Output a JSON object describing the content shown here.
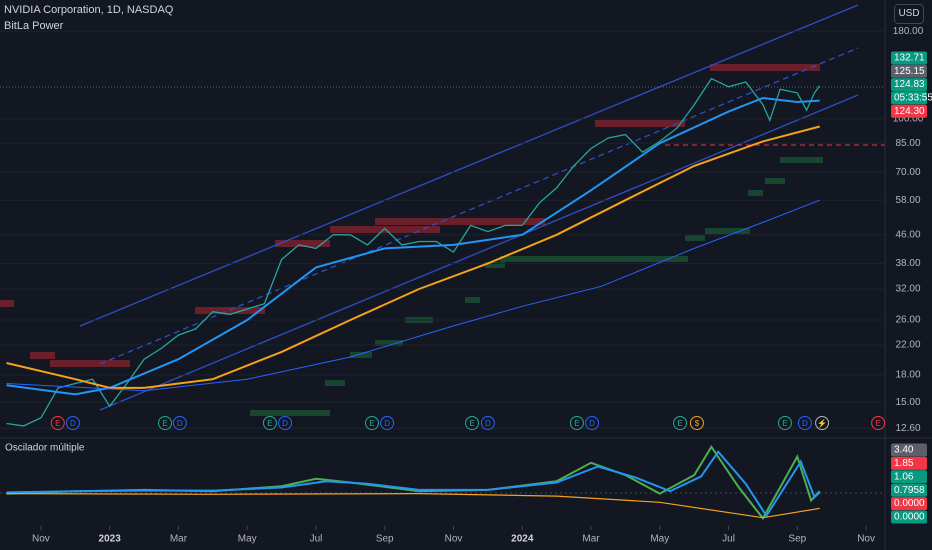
{
  "header": {
    "title": "NVIDIA Corporation, 1D, NASDAQ",
    "indicator": "BitLa Power",
    "currency": "USD"
  },
  "chart_data": {
    "type": "line",
    "xlim": [
      -0.19,
      25.55
    ],
    "xticks": [
      {
        "value": 1,
        "label": "Nov"
      },
      {
        "value": 3,
        "label": "2023"
      },
      {
        "value": 5,
        "label": "Mar"
      },
      {
        "value": 7,
        "label": "May"
      },
      {
        "value": 9,
        "label": "Jul"
      },
      {
        "value": 11,
        "label": "Sep"
      },
      {
        "value": 13,
        "label": "Nov"
      },
      {
        "value": 15,
        "label": "2024"
      },
      {
        "value": 17,
        "label": "Mar"
      },
      {
        "value": 19,
        "label": "May"
      },
      {
        "value": 21,
        "label": "Jul"
      },
      {
        "value": 23,
        "label": "Sep"
      },
      {
        "value": 25,
        "label": "Nov"
      }
    ],
    "ylim": [
      11.8,
      221.7
    ],
    "log_scale": true,
    "yticks": [
      {
        "value": 180,
        "label": "180.00"
      },
      {
        "value": 100,
        "label": "100.00"
      },
      {
        "value": 85,
        "label": "85.00"
      },
      {
        "value": 70,
        "label": "70.00"
      },
      {
        "value": 58,
        "label": "58.00"
      },
      {
        "value": 46,
        "label": "46.00"
      },
      {
        "value": 38,
        "label": "38.00"
      },
      {
        "value": 32,
        "label": "32.00"
      },
      {
        "value": 26,
        "label": "26.00"
      },
      {
        "value": 22,
        "label": "22.00"
      },
      {
        "value": 18,
        "label": "18.00"
      },
      {
        "value": 15,
        "label": "15.00"
      },
      {
        "value": 12.6,
        "label": "12.60"
      }
    ],
    "series": [
      {
        "color": "#26a69a",
        "x": [
          0,
          0.5,
          1,
          1.5,
          2,
          2.5,
          3,
          3.5,
          4,
          4.5,
          5,
          5.5,
          6,
          6.5,
          7,
          7.5,
          8,
          8.5,
          9,
          9.5,
          10,
          10.5,
          11,
          11.5,
          12,
          12.5,
          13,
          13.5,
          14,
          14.5,
          15,
          15.5,
          16,
          16.5,
          17,
          17.5,
          18,
          18.5,
          19,
          19.5,
          20,
          20.5,
          21,
          21.5,
          22,
          22.2,
          22.5,
          23,
          23.27,
          23.5,
          23.65
        ],
        "values": [
          13,
          12.8,
          13.5,
          16.5,
          17,
          17.5,
          14.6,
          17,
          20,
          21.5,
          23.5,
          24.5,
          27.5,
          27,
          28,
          29,
          39,
          43,
          42,
          46,
          46,
          43,
          48,
          43,
          44,
          44,
          41,
          49,
          47,
          49,
          49,
          57,
          63,
          73,
          82,
          88,
          90,
          80,
          86,
          94,
          110,
          131,
          124,
          128,
          110,
          99,
          122,
          119,
          106,
          119,
          124.83
        ]
      },
      {
        "color": "#2196f3",
        "x": [
          0,
          2,
          3,
          5,
          7,
          9,
          11,
          13,
          15,
          17,
          19,
          21,
          22,
          23,
          23.65
        ],
        "values": [
          16.8,
          15.8,
          16.5,
          20,
          26,
          37,
          42,
          43,
          46,
          62,
          85,
          105,
          115,
          112,
          113
        ]
      },
      {
        "color": "#f7a21b",
        "x": [
          0,
          2,
          3,
          4,
          6,
          8,
          10,
          12,
          14,
          16,
          18,
          20,
          22,
          23.65
        ],
        "values": [
          19.5,
          17.5,
          16.5,
          16.5,
          17.5,
          21,
          26,
          32,
          38,
          46,
          58,
          73,
          86,
          95
        ]
      },
      {
        "color": "#2962ff",
        "x": [
          0,
          4,
          7,
          10,
          13,
          15,
          17.3,
          20,
          22,
          23.65
        ],
        "values": [
          17,
          16.2,
          17.5,
          20.3,
          25,
          28.5,
          32.6,
          42,
          50,
          58
        ]
      }
    ],
    "price_tags": [
      {
        "value": 132.71,
        "color": "#089981"
      },
      {
        "value": 125.15,
        "color": "#5d606b"
      },
      {
        "value": 124.83,
        "color": "#089981"
      },
      {
        "value": "05:33:55",
        "color": "#089981"
      },
      {
        "value": 124.3,
        "label": "124.30",
        "color": "#f23645"
      }
    ],
    "events": [
      {
        "label": "E",
        "x": 1.49,
        "color": "#f23645"
      },
      {
        "label": "D",
        "x": 1.93,
        "color": "#2962ff"
      },
      {
        "label": "E",
        "x": 4.61,
        "color": "#22ab94"
      },
      {
        "label": "D",
        "x": 5.04,
        "color": "#2962ff"
      },
      {
        "label": "E",
        "x": 7.66,
        "color": "#22ab94"
      },
      {
        "label": "D",
        "x": 8.1,
        "color": "#2962ff"
      },
      {
        "label": "E",
        "x": 10.63,
        "color": "#22ab94"
      },
      {
        "label": "D",
        "x": 11.07,
        "color": "#2962ff"
      },
      {
        "label": "E",
        "x": 13.54,
        "color": "#22ab94"
      },
      {
        "label": "D",
        "x": 14.0,
        "color": "#2962ff"
      },
      {
        "label": "E",
        "x": 16.59,
        "color": "#22ab94"
      },
      {
        "label": "D",
        "x": 17.03,
        "color": "#2962ff"
      },
      {
        "label": "E",
        "x": 19.59,
        "color": "#22ab94"
      },
      {
        "label": "$",
        "x": 20.08,
        "color": "#f7a21b"
      },
      {
        "label": "E",
        "x": 22.64,
        "color": "#22ab94"
      },
      {
        "label": "D",
        "x": 23.22,
        "color": "#2962ff"
      },
      {
        "label": "⚡",
        "x": 23.72,
        "color": "#b2b5be"
      },
      {
        "label": "E",
        "x": 25.35,
        "color": "#f23645"
      }
    ]
  },
  "oscillator": {
    "title": "Oscilador múltiple",
    "ylim": [
      -2.3,
      4.35
    ],
    "series": [
      {
        "color": "#4caf50",
        "x": [
          0,
          2,
          4,
          6,
          8,
          9,
          10,
          12,
          14,
          16,
          17,
          18,
          19,
          20,
          20.5,
          21.3,
          22,
          23,
          23.4,
          23.65
        ],
        "values": [
          0,
          0.2,
          0.3,
          0.2,
          0.6,
          1.2,
          0.9,
          0.2,
          0.3,
          1.0,
          2.5,
          1.5,
          0,
          1.5,
          3.8,
          0.5,
          -2.0,
          3.0,
          -0.55,
          0.2
        ]
      },
      {
        "color": "#2196f3",
        "x": [
          0,
          2,
          4,
          6,
          8,
          9.3,
          10.5,
          12,
          14,
          16,
          17.2,
          18.3,
          19.3,
          20.2,
          20.7,
          21.5,
          22.1,
          23.1,
          23.5,
          23.65
        ],
        "values": [
          0.1,
          0.2,
          0.25,
          0.25,
          0.5,
          1.0,
          0.8,
          0.3,
          0.3,
          0.9,
          2.2,
          1.3,
          0.2,
          1.4,
          3.4,
          0.8,
          -1.8,
          2.6,
          -0.3,
          0.1
        ]
      },
      {
        "color": "#f7a21b",
        "x": [
          0,
          6,
          12,
          16,
          19,
          22,
          23.65
        ],
        "values": [
          0,
          -0.05,
          0,
          -0.2,
          -0.7,
          -1.95,
          -1.2
        ]
      }
    ],
    "tags": [
      {
        "value": 3.4,
        "label": "3.40",
        "color": "#5d606b"
      },
      {
        "value": 1.85,
        "color": "#f23645"
      },
      {
        "value": 1.06,
        "color": "#089981"
      },
      {
        "value": 0.7958,
        "color": "#089981"
      },
      {
        "value": 0,
        "label": "0.0000",
        "color": "#f23645"
      },
      {
        "value": 0,
        "label": "0.0000",
        "color": "#089981"
      }
    ]
  }
}
